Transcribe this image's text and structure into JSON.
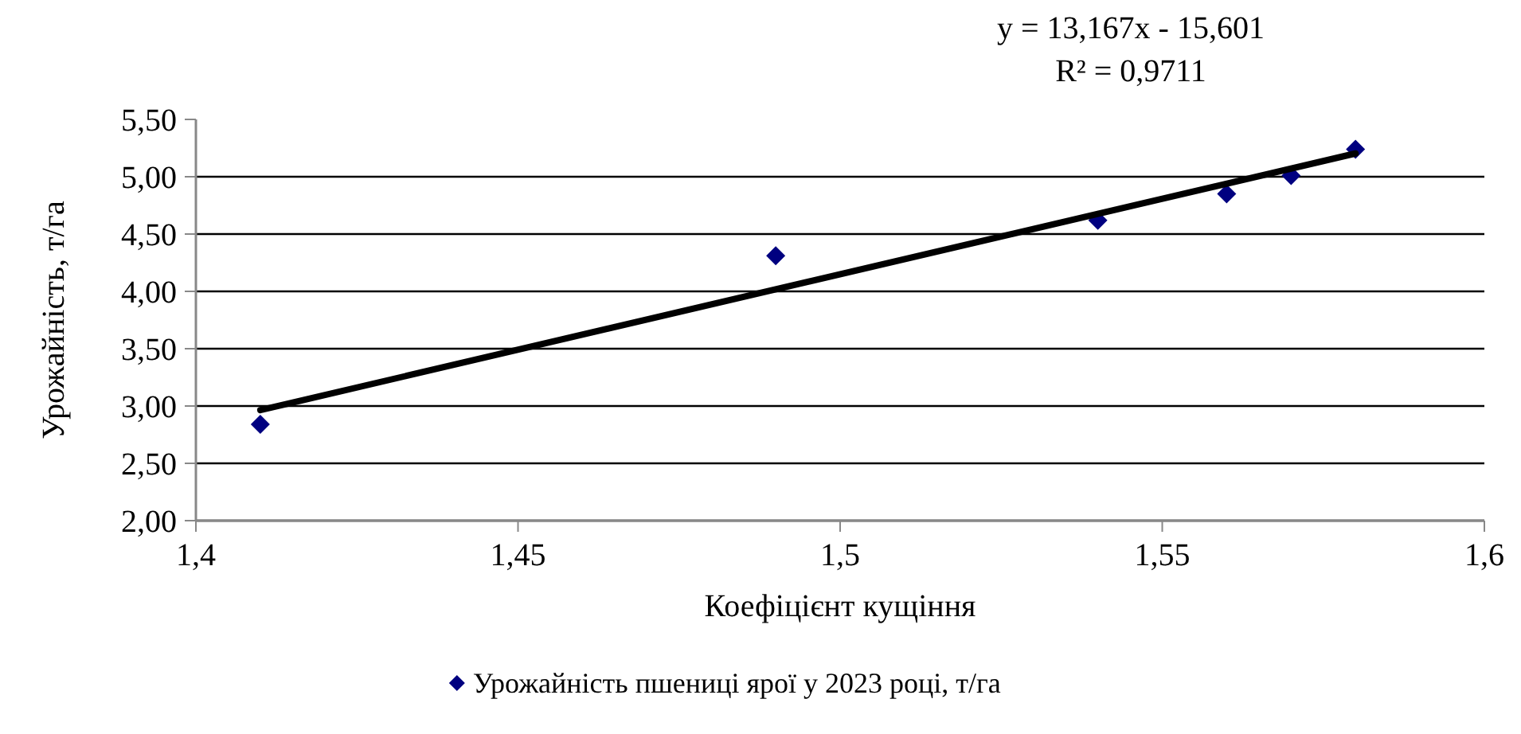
{
  "chart_data": {
    "type": "scatter",
    "xlabel": "Коефіцієнт кущіння",
    "ylabel": "Урожайність, т/га",
    "annotations": [
      "y = 13,167x - 15,601",
      "R² = 0,9711"
    ],
    "xlim": [
      1.4,
      1.6
    ],
    "xticks": [
      {
        "value": 1.4,
        "label": "1,4"
      },
      {
        "value": 1.45,
        "label": "1,45"
      },
      {
        "value": 1.5,
        "label": "1,5"
      },
      {
        "value": 1.55,
        "label": "1,55"
      },
      {
        "value": 1.6,
        "label": "1,6"
      }
    ],
    "ylim": [
      2,
      5.5
    ],
    "yticks": [
      {
        "value": 2,
        "label": "2,00"
      },
      {
        "value": 2.5,
        "label": "2,50"
      },
      {
        "value": 3,
        "label": "3,00"
      },
      {
        "value": 3.5,
        "label": "3,50"
      },
      {
        "value": 4,
        "label": "4,00"
      },
      {
        "value": 4.5,
        "label": "4,50"
      },
      {
        "value": 5,
        "label": "5,00"
      },
      {
        "value": 5.5,
        "label": "5,50"
      }
    ],
    "grid": "y",
    "legend": "bottom",
    "marker": "diamond",
    "series": [
      {
        "name": "Урожайність пшениці ярої у 2023 році, т/га",
        "color": "#000080",
        "x": [
          1.41,
          1.49,
          1.54,
          1.56,
          1.57,
          1.58
        ],
        "values": [
          2.84,
          4.31,
          4.62,
          4.85,
          5.01,
          5.24
        ]
      },
      {
        "type": "line",
        "color": "#000000",
        "x": [
          1.41,
          1.58
        ],
        "values": [
          2.964,
          5.203
        ],
        "marker": "none"
      }
    ]
  }
}
